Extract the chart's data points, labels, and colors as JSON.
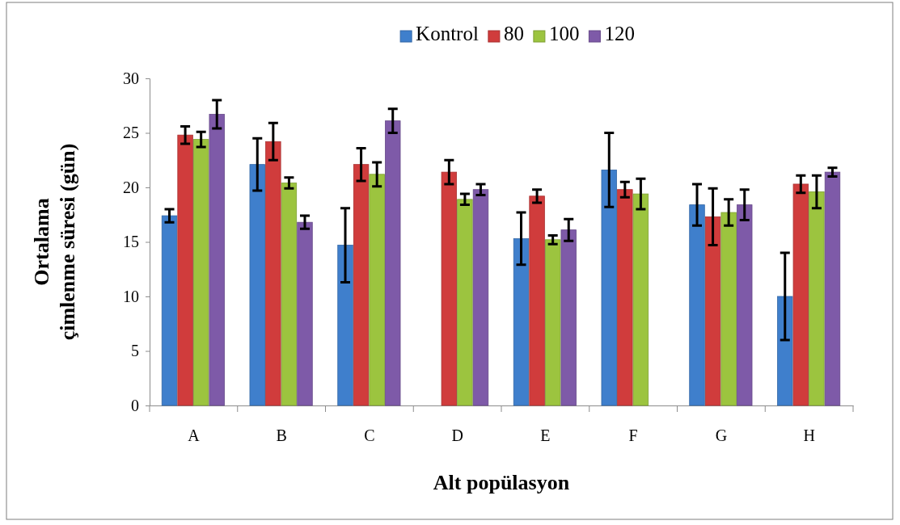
{
  "chart_data": {
    "type": "bar",
    "xlabel": "Alt popülasyon",
    "ylabel": "Ortalama çimlenme süresi (gün)",
    "categories": [
      "A",
      "B",
      "C",
      "D",
      "E",
      "F",
      "G",
      "H"
    ],
    "series": [
      {
        "name": "Kontrol",
        "color": "#3f7fcc",
        "values": [
          17.4,
          22.1,
          14.7,
          null,
          15.3,
          21.6,
          18.4,
          10.0
        ],
        "errors": [
          0.6,
          2.4,
          3.4,
          null,
          2.4,
          3.4,
          1.9,
          4.0
        ]
      },
      {
        "name": "80",
        "color": "#d03c3c",
        "values": [
          24.8,
          24.2,
          22.1,
          21.4,
          19.2,
          19.8,
          17.3,
          20.3
        ],
        "errors": [
          0.8,
          1.7,
          1.5,
          1.1,
          0.6,
          0.7,
          2.6,
          0.8
        ]
      },
      {
        "name": "100",
        "color": "#9cc43f",
        "values": [
          24.4,
          20.4,
          21.2,
          18.9,
          15.2,
          19.4,
          17.7,
          19.6
        ],
        "errors": [
          0.7,
          0.5,
          1.1,
          0.5,
          0.4,
          1.4,
          1.2,
          1.5
        ]
      },
      {
        "name": "120",
        "color": "#7e5aa8",
        "values": [
          26.7,
          16.8,
          26.1,
          19.8,
          16.1,
          null,
          18.4,
          21.4
        ],
        "errors": [
          1.3,
          0.6,
          1.1,
          0.5,
          1.0,
          null,
          1.4,
          0.4
        ]
      }
    ],
    "ylim": [
      0,
      30
    ],
    "yticks": [
      0,
      5,
      10,
      15,
      20,
      25,
      30
    ],
    "grid": false,
    "legend": "top"
  }
}
